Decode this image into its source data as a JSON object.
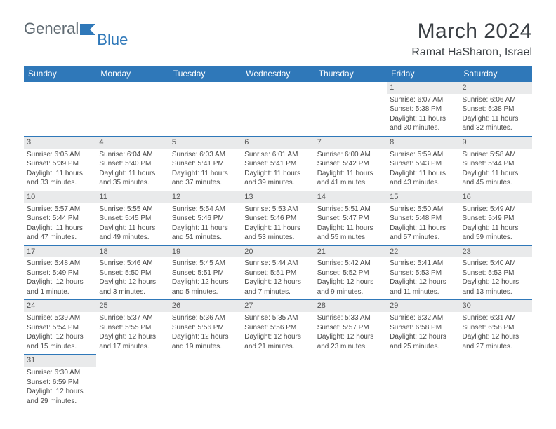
{
  "brand": {
    "part1": "General",
    "part2": "Blue"
  },
  "title": "March 2024",
  "location": "Ramat HaSharon, Israel",
  "colors": {
    "header_bg": "#2f78b9",
    "header_fg": "#ffffff",
    "daynum_bg": "#e9eaeb",
    "border": "#2f78b9"
  },
  "dayNames": [
    "Sunday",
    "Monday",
    "Tuesday",
    "Wednesday",
    "Thursday",
    "Friday",
    "Saturday"
  ],
  "weeks": [
    [
      null,
      null,
      null,
      null,
      null,
      {
        "n": "1",
        "sr": "Sunrise: 6:07 AM",
        "ss": "Sunset: 5:38 PM",
        "dl": "Daylight: 11 hours and 30 minutes."
      },
      {
        "n": "2",
        "sr": "Sunrise: 6:06 AM",
        "ss": "Sunset: 5:38 PM",
        "dl": "Daylight: 11 hours and 32 minutes."
      }
    ],
    [
      {
        "n": "3",
        "sr": "Sunrise: 6:05 AM",
        "ss": "Sunset: 5:39 PM",
        "dl": "Daylight: 11 hours and 33 minutes."
      },
      {
        "n": "4",
        "sr": "Sunrise: 6:04 AM",
        "ss": "Sunset: 5:40 PM",
        "dl": "Daylight: 11 hours and 35 minutes."
      },
      {
        "n": "5",
        "sr": "Sunrise: 6:03 AM",
        "ss": "Sunset: 5:41 PM",
        "dl": "Daylight: 11 hours and 37 minutes."
      },
      {
        "n": "6",
        "sr": "Sunrise: 6:01 AM",
        "ss": "Sunset: 5:41 PM",
        "dl": "Daylight: 11 hours and 39 minutes."
      },
      {
        "n": "7",
        "sr": "Sunrise: 6:00 AM",
        "ss": "Sunset: 5:42 PM",
        "dl": "Daylight: 11 hours and 41 minutes."
      },
      {
        "n": "8",
        "sr": "Sunrise: 5:59 AM",
        "ss": "Sunset: 5:43 PM",
        "dl": "Daylight: 11 hours and 43 minutes."
      },
      {
        "n": "9",
        "sr": "Sunrise: 5:58 AM",
        "ss": "Sunset: 5:44 PM",
        "dl": "Daylight: 11 hours and 45 minutes."
      }
    ],
    [
      {
        "n": "10",
        "sr": "Sunrise: 5:57 AM",
        "ss": "Sunset: 5:44 PM",
        "dl": "Daylight: 11 hours and 47 minutes."
      },
      {
        "n": "11",
        "sr": "Sunrise: 5:55 AM",
        "ss": "Sunset: 5:45 PM",
        "dl": "Daylight: 11 hours and 49 minutes."
      },
      {
        "n": "12",
        "sr": "Sunrise: 5:54 AM",
        "ss": "Sunset: 5:46 PM",
        "dl": "Daylight: 11 hours and 51 minutes."
      },
      {
        "n": "13",
        "sr": "Sunrise: 5:53 AM",
        "ss": "Sunset: 5:46 PM",
        "dl": "Daylight: 11 hours and 53 minutes."
      },
      {
        "n": "14",
        "sr": "Sunrise: 5:51 AM",
        "ss": "Sunset: 5:47 PM",
        "dl": "Daylight: 11 hours and 55 minutes."
      },
      {
        "n": "15",
        "sr": "Sunrise: 5:50 AM",
        "ss": "Sunset: 5:48 PM",
        "dl": "Daylight: 11 hours and 57 minutes."
      },
      {
        "n": "16",
        "sr": "Sunrise: 5:49 AM",
        "ss": "Sunset: 5:49 PM",
        "dl": "Daylight: 11 hours and 59 minutes."
      }
    ],
    [
      {
        "n": "17",
        "sr": "Sunrise: 5:48 AM",
        "ss": "Sunset: 5:49 PM",
        "dl": "Daylight: 12 hours and 1 minute."
      },
      {
        "n": "18",
        "sr": "Sunrise: 5:46 AM",
        "ss": "Sunset: 5:50 PM",
        "dl": "Daylight: 12 hours and 3 minutes."
      },
      {
        "n": "19",
        "sr": "Sunrise: 5:45 AM",
        "ss": "Sunset: 5:51 PM",
        "dl": "Daylight: 12 hours and 5 minutes."
      },
      {
        "n": "20",
        "sr": "Sunrise: 5:44 AM",
        "ss": "Sunset: 5:51 PM",
        "dl": "Daylight: 12 hours and 7 minutes."
      },
      {
        "n": "21",
        "sr": "Sunrise: 5:42 AM",
        "ss": "Sunset: 5:52 PM",
        "dl": "Daylight: 12 hours and 9 minutes."
      },
      {
        "n": "22",
        "sr": "Sunrise: 5:41 AM",
        "ss": "Sunset: 5:53 PM",
        "dl": "Daylight: 12 hours and 11 minutes."
      },
      {
        "n": "23",
        "sr": "Sunrise: 5:40 AM",
        "ss": "Sunset: 5:53 PM",
        "dl": "Daylight: 12 hours and 13 minutes."
      }
    ],
    [
      {
        "n": "24",
        "sr": "Sunrise: 5:39 AM",
        "ss": "Sunset: 5:54 PM",
        "dl": "Daylight: 12 hours and 15 minutes."
      },
      {
        "n": "25",
        "sr": "Sunrise: 5:37 AM",
        "ss": "Sunset: 5:55 PM",
        "dl": "Daylight: 12 hours and 17 minutes."
      },
      {
        "n": "26",
        "sr": "Sunrise: 5:36 AM",
        "ss": "Sunset: 5:56 PM",
        "dl": "Daylight: 12 hours and 19 minutes."
      },
      {
        "n": "27",
        "sr": "Sunrise: 5:35 AM",
        "ss": "Sunset: 5:56 PM",
        "dl": "Daylight: 12 hours and 21 minutes."
      },
      {
        "n": "28",
        "sr": "Sunrise: 5:33 AM",
        "ss": "Sunset: 5:57 PM",
        "dl": "Daylight: 12 hours and 23 minutes."
      },
      {
        "n": "29",
        "sr": "Sunrise: 6:32 AM",
        "ss": "Sunset: 6:58 PM",
        "dl": "Daylight: 12 hours and 25 minutes."
      },
      {
        "n": "30",
        "sr": "Sunrise: 6:31 AM",
        "ss": "Sunset: 6:58 PM",
        "dl": "Daylight: 12 hours and 27 minutes."
      }
    ],
    [
      {
        "n": "31",
        "sr": "Sunrise: 6:30 AM",
        "ss": "Sunset: 6:59 PM",
        "dl": "Daylight: 12 hours and 29 minutes."
      },
      null,
      null,
      null,
      null,
      null,
      null
    ]
  ]
}
